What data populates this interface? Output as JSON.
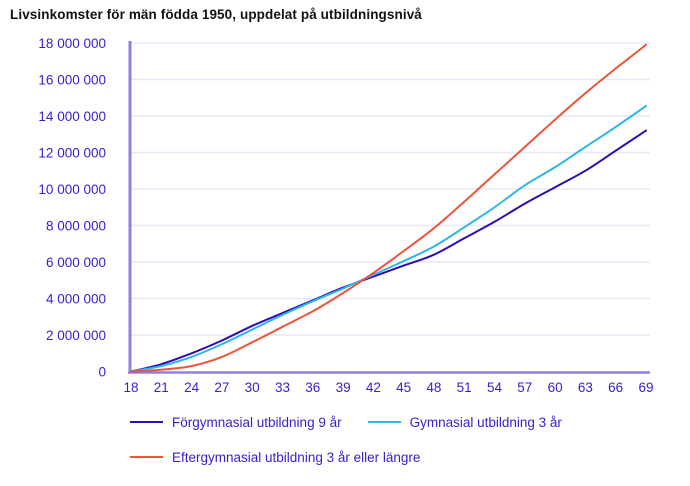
{
  "colors": {
    "title_text": "#121212",
    "axis_text": "#3d1bce",
    "axis_line": "#8f7ee3",
    "grid_line": "#eae8f6",
    "background": "#ffffff",
    "series_forgymnasial": "#2d0cb4",
    "series_gymnasial": "#2fb5ea",
    "series_eftergymnasial": "#ed553b"
  },
  "chart_data": {
    "type": "line",
    "title": "Livsinkomster för män födda 1950, uppdelat på utbildningsnivå",
    "xlabel": "",
    "ylabel": "",
    "x": [
      18,
      21,
      24,
      27,
      30,
      33,
      36,
      39,
      42,
      45,
      48,
      51,
      54,
      57,
      60,
      63,
      66,
      69
    ],
    "xtick_labels": [
      "18",
      "21",
      "24",
      "27",
      "30",
      "33",
      "36",
      "39",
      "42",
      "45",
      "48",
      "51",
      "54",
      "57",
      "60",
      "63",
      "66",
      "69"
    ],
    "ylim": [
      0,
      18000000
    ],
    "ytick_values": [
      0,
      2000000,
      4000000,
      6000000,
      8000000,
      10000000,
      12000000,
      14000000,
      16000000,
      18000000
    ],
    "ytick_labels": [
      "0",
      "2 000 000",
      "4 000 000",
      "6 000 000",
      "8 000 000",
      "10 000 000",
      "12 000 000",
      "14 000 000",
      "16 000 000",
      "18 000 000"
    ],
    "grid": "horizontal",
    "legend_position": "bottom",
    "series": [
      {
        "id": "forgymnasial",
        "name": "Förgymnasial utbildning 9 år",
        "color": "#2d0cb4",
        "values": [
          0,
          400000,
          1000000,
          1700000,
          2500000,
          3200000,
          3900000,
          4600000,
          5200000,
          5800000,
          6400000,
          7300000,
          8200000,
          9200000,
          10100000,
          11000000,
          12100000,
          13200000
        ]
      },
      {
        "id": "gymnasial",
        "name": "Gymnasial utbildning 3 år",
        "color": "#2fb5ea",
        "values": [
          0,
          300000,
          800000,
          1500000,
          2300000,
          3100000,
          3850000,
          4550000,
          5300000,
          6050000,
          6850000,
          7900000,
          9000000,
          10200000,
          11200000,
          12300000,
          13400000,
          14550000
        ]
      },
      {
        "id": "eftergymnasial",
        "name": "Eftergymnasial utbildning 3 år eller längre",
        "color": "#ed553b",
        "values": [
          0,
          100000,
          300000,
          800000,
          1600000,
          2450000,
          3300000,
          4300000,
          5400000,
          6600000,
          7850000,
          9300000,
          10800000,
          12300000,
          13800000,
          15250000,
          16600000,
          17900000
        ]
      }
    ]
  }
}
